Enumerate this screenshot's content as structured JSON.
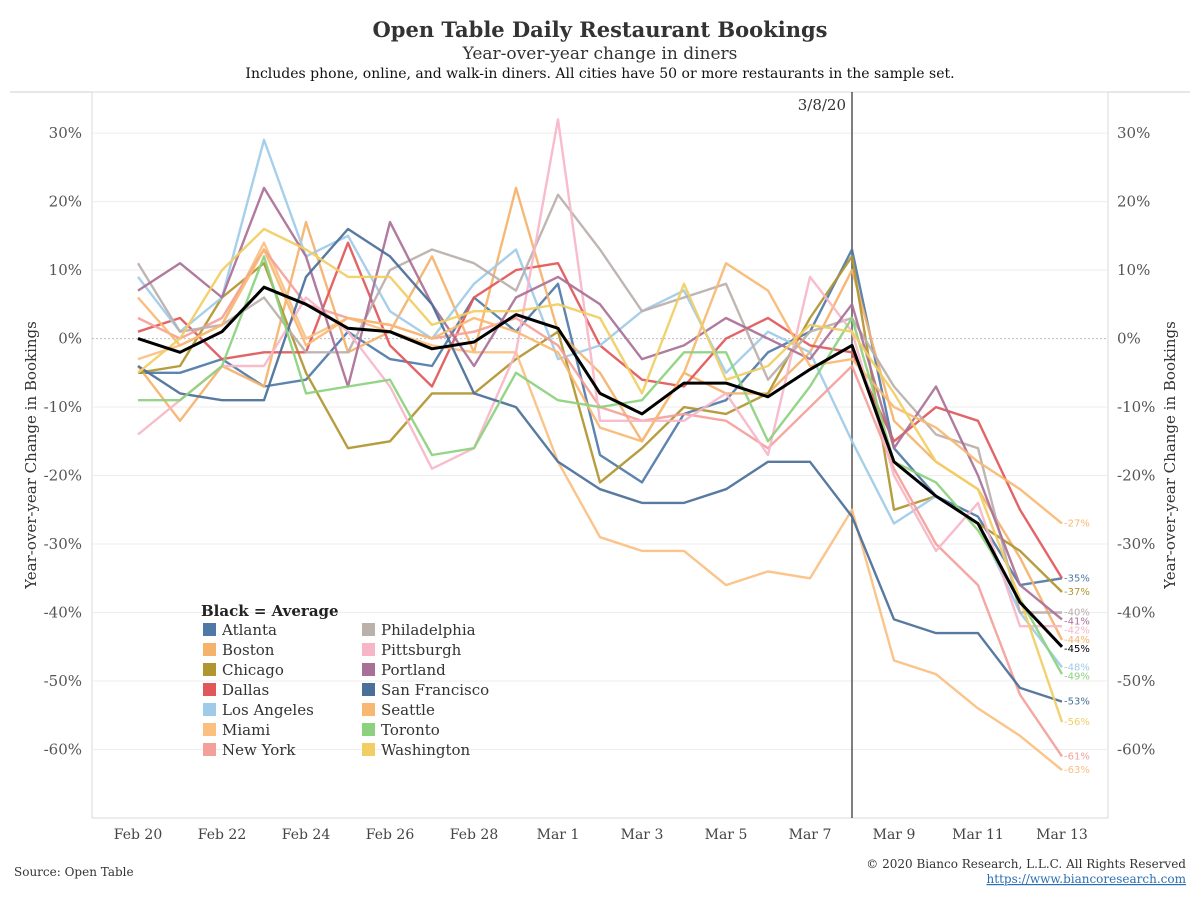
{
  "chart_data": {
    "type": "line",
    "title": "Open Table Daily Restaurant Bookings",
    "subtitle": "Year-over-year change in diners",
    "note": "Includes phone, online, and walk-in diners. All cities have 50 or more restaurants in the sample set.",
    "ylabel_left": "Year-over-year Change in Bookings",
    "ylabel_right": "Year-over-year Change in Bookings",
    "ylim": [
      -70,
      36
    ],
    "yticks": [
      30,
      20,
      10,
      0,
      -10,
      -20,
      -30,
      -40,
      -50,
      -60
    ],
    "ytick_labels": [
      "30%",
      "20%",
      "10%",
      "0%",
      "-10%",
      "-20%",
      "-30%",
      "-40%",
      "-50%",
      "-60%"
    ],
    "x": [
      "Feb 20",
      "Feb 21",
      "Feb 22",
      "Feb 23",
      "Feb 24",
      "Feb 25",
      "Feb 26",
      "Feb 27",
      "Feb 28",
      "Feb 29",
      "Mar 1",
      "Mar 2",
      "Mar 3",
      "Mar 4",
      "Mar 5",
      "Mar 6",
      "Mar 7",
      "Mar 8",
      "Mar 9",
      "Mar 10",
      "Mar 11",
      "Mar 12",
      "Mar 13"
    ],
    "xtick_labels": [
      "Feb 20",
      "Feb 22",
      "Feb 24",
      "Feb 26",
      "Feb 28",
      "Mar 1",
      "Mar 3",
      "Mar 5",
      "Mar 7",
      "Mar 9",
      "Mar 11",
      "Mar 13"
    ],
    "xtick_index": [
      0,
      2,
      4,
      6,
      8,
      10,
      12,
      14,
      16,
      18,
      20,
      22
    ],
    "event_line": {
      "x_index": 17,
      "label": "3/8/20"
    },
    "legend_title": "Black = Average",
    "series": [
      {
        "name": "Atlanta",
        "color": "#4e79a7",
        "values": [
          -5,
          -5,
          -3,
          -7,
          -6,
          1,
          -3,
          -4,
          6,
          1,
          8,
          -17,
          -21,
          -11,
          -9,
          -2,
          1,
          13,
          -16,
          -23,
          -26,
          -36,
          -35
        ],
        "end_label": "-35%"
      },
      {
        "name": "Boston",
        "color": "#f5b26b",
        "values": [
          -4,
          -12,
          -4,
          -7,
          17,
          -2,
          1,
          12,
          -2,
          22,
          1,
          -5,
          -15,
          -5,
          -8,
          -8,
          -2,
          10,
          -12,
          -18,
          -22,
          -32,
          -44
        ],
        "end_label": "-44%"
      },
      {
        "name": "Chicago",
        "color": "#b09530",
        "values": [
          -5,
          -4,
          6,
          11,
          -5,
          -16,
          -15,
          -8,
          -8,
          -3,
          1,
          -21,
          -16,
          -10,
          -11,
          -8,
          3,
          12,
          -25,
          -23,
          -27,
          -31,
          -37
        ],
        "end_label": "-37%"
      },
      {
        "name": "Dallas",
        "color": "#e15759",
        "values": [
          1,
          3,
          -3,
          -2,
          -2,
          14,
          -1,
          -7,
          6,
          10,
          11,
          -1,
          -6,
          -7,
          0,
          3,
          -1,
          -2,
          -15,
          -10,
          -12,
          -25,
          -35
        ],
        "end_label": ""
      },
      {
        "name": "Los Angeles",
        "color": "#a0cbe8",
        "values": [
          9,
          1,
          6,
          29,
          12,
          15,
          4,
          0,
          8,
          13,
          -3,
          -1,
          4,
          7,
          -5,
          1,
          -2,
          -15,
          -27,
          -23,
          -27,
          -40,
          -48
        ],
        "end_label": "-48%"
      },
      {
        "name": "Miami",
        "color": "#fbbf80",
        "values": [
          -3,
          -1,
          2,
          14,
          0,
          3,
          1,
          -1,
          -2,
          -2,
          -18,
          -29,
          -31,
          -31,
          -36,
          -34,
          -35,
          -25,
          -47,
          -49,
          -54,
          -58,
          -63
        ],
        "end_label": "-63%"
      },
      {
        "name": "New York",
        "color": "#f4a09a",
        "values": [
          3,
          0,
          3,
          13,
          5,
          3,
          2,
          0,
          1,
          3,
          -1,
          -10,
          -12,
          -11,
          -12,
          -16,
          -10,
          -4,
          -19,
          -30,
          -36,
          -52,
          -61
        ],
        "end_label": "-61%"
      },
      {
        "name": "Philadelphia",
        "color": "#bab0ac",
        "values": [
          11,
          1,
          2,
          6,
          -2,
          -2,
          10,
          13,
          11,
          7,
          21,
          13,
          4,
          6,
          8,
          -6,
          1,
          3,
          -7,
          -14,
          -16,
          -40,
          -40
        ],
        "end_label": "-40%"
      },
      {
        "name": "Pittsburgh",
        "color": "#f7b6c8",
        "values": [
          -14,
          -9,
          -4,
          -4,
          6,
          1,
          -7,
          -19,
          -16,
          -2,
          32,
          -12,
          -12,
          -12,
          -8,
          -17,
          9,
          1,
          -20,
          -31,
          -24,
          -42,
          -42
        ],
        "end_label": "-42%"
      },
      {
        "name": "Portland",
        "color": "#a97097",
        "values": [
          7,
          11,
          6,
          22,
          12,
          -7,
          17,
          5,
          -4,
          6,
          9,
          5,
          -3,
          -1,
          3,
          0,
          -3,
          5,
          -16,
          -7,
          -20,
          -36,
          -41
        ],
        "end_label": "-41%"
      },
      {
        "name": "San Francisco",
        "color": "#4a6f98",
        "values": [
          -4,
          -8,
          -9,
          -9,
          9,
          16,
          12,
          5,
          -8,
          -10,
          -18,
          -22,
          -24,
          -24,
          -22,
          -18,
          -18,
          -26,
          -41,
          -43,
          -43,
          -51,
          -53
        ],
        "end_label": "-53%"
      },
      {
        "name": "Seattle",
        "color": "#f9b872",
        "values": [
          6,
          -1,
          2,
          13,
          -1,
          3,
          2,
          0,
          3,
          1,
          -2,
          -13,
          -15,
          -5,
          11,
          7,
          -4,
          -3,
          -10,
          -13,
          -18,
          -22,
          -27
        ],
        "end_label": "-27%"
      },
      {
        "name": "Toronto",
        "color": "#8cd17d",
        "values": [
          -9,
          -9,
          -4,
          12,
          -8,
          -7,
          -6,
          -17,
          -16,
          -5,
          -9,
          -10,
          -9,
          -2,
          -2,
          -15,
          -7,
          3,
          -18,
          -21,
          -28,
          -38,
          -49
        ],
        "end_label": "-49%"
      },
      {
        "name": "Washington",
        "color": "#f1ce63",
        "values": [
          -5,
          0,
          10,
          16,
          13,
          9,
          9,
          2,
          4,
          4,
          5,
          3,
          -8,
          8,
          -6,
          -4,
          2,
          1,
          -8,
          -18,
          -22,
          -38,
          -56
        ],
        "end_label": "-56%"
      }
    ],
    "average": {
      "name": "Average",
      "color": "#000000",
      "values": [
        0,
        -2,
        1,
        7.5,
        5,
        1.5,
        1,
        -1.5,
        -0.5,
        3.5,
        1.5,
        -8,
        -11,
        -6.5,
        -6.5,
        -8.5,
        -4.5,
        -1,
        -18,
        -23,
        -27,
        -38.5,
        -45
      ],
      "end_label": "-45%"
    },
    "footer": {
      "source": "Source: Open Table",
      "copyright": "© 2020 Bianco Research, L.L.C. All Rights Reserved",
      "url": "https://www.biancoresearch.com"
    }
  }
}
